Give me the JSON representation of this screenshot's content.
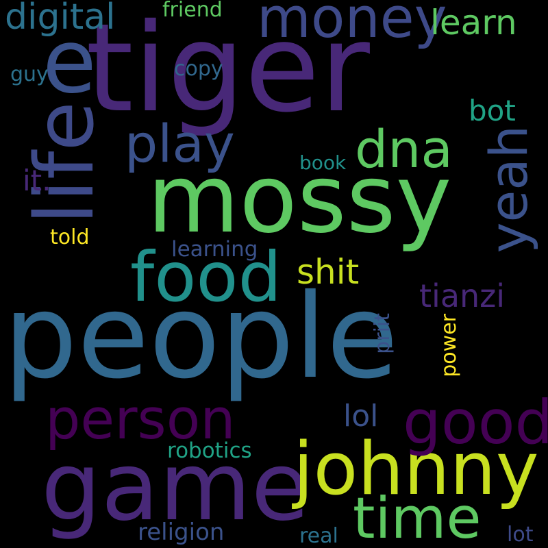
{
  "canvas": {
    "background": "#000000"
  },
  "words": [
    {
      "id": "people",
      "text": "people",
      "color": "#31688e",
      "orientation": "horizontal"
    },
    {
      "id": "tiger",
      "text": "tiger",
      "color": "#482878",
      "orientation": "horizontal"
    },
    {
      "id": "life",
      "text": "life",
      "color": "#3e4a89",
      "orientation": "vertical"
    },
    {
      "id": "e",
      "text": "e",
      "color": "#3b528b",
      "orientation": "horizontal"
    },
    {
      "id": "mossy",
      "text": "mossy",
      "color": "#5ec962",
      "orientation": "horizontal"
    },
    {
      "id": "game",
      "text": "game",
      "color": "#482878",
      "orientation": "horizontal"
    },
    {
      "id": "johnny",
      "text": "johnny",
      "color": "#c8e020",
      "orientation": "horizontal"
    },
    {
      "id": "food",
      "text": "food",
      "color": "#21918c",
      "orientation": "horizontal"
    },
    {
      "id": "money",
      "text": "money",
      "color": "#3e4a89",
      "orientation": "horizontal"
    },
    {
      "id": "person",
      "text": "person",
      "color": "#440154",
      "orientation": "horizontal"
    },
    {
      "id": "good",
      "text": "good",
      "color": "#440154",
      "orientation": "horizontal"
    },
    {
      "id": "time",
      "text": "time",
      "color": "#5ec962",
      "orientation": "horizontal"
    },
    {
      "id": "dna",
      "text": "dna",
      "color": "#5ec962",
      "orientation": "horizontal"
    },
    {
      "id": "play",
      "text": "play",
      "color": "#3b528b",
      "orientation": "horizontal"
    },
    {
      "id": "yeah",
      "text": "yeah",
      "color": "#3b528b",
      "orientation": "vertical"
    },
    {
      "id": "shit",
      "text": "shit",
      "color": "#c8e020",
      "orientation": "horizontal"
    },
    {
      "id": "digital",
      "text": "digital",
      "color": "#2c728e",
      "orientation": "horizontal"
    },
    {
      "id": "learn",
      "text": "learn",
      "color": "#5ec962",
      "orientation": "horizontal"
    },
    {
      "id": "tianzi",
      "text": "tianzi",
      "color": "#482878",
      "orientation": "horizontal"
    },
    {
      "id": "bot",
      "text": "bot",
      "color": "#20a386",
      "orientation": "horizontal"
    },
    {
      "id": "lol",
      "text": "lol",
      "color": "#3b528b",
      "orientation": "horizontal"
    },
    {
      "id": "it",
      "text": "it.",
      "color": "#482878",
      "orientation": "horizontal"
    },
    {
      "id": "religion",
      "text": "religion",
      "color": "#3b528b",
      "orientation": "horizontal"
    },
    {
      "id": "robotics",
      "text": "robotics",
      "color": "#20a386",
      "orientation": "horizontal"
    },
    {
      "id": "learning",
      "text": "learning",
      "color": "#3b528b",
      "orientation": "horizontal"
    },
    {
      "id": "told",
      "text": "told",
      "color": "#fde725",
      "orientation": "horizontal"
    },
    {
      "id": "friend",
      "text": "friend",
      "color": "#5ec962",
      "orientation": "horizontal"
    },
    {
      "id": "copy",
      "text": "copy",
      "color": "#31688e",
      "orientation": "horizontal"
    },
    {
      "id": "guy",
      "text": "guy",
      "color": "#2c728e",
      "orientation": "horizontal"
    },
    {
      "id": "book",
      "text": "book",
      "color": "#21918c",
      "orientation": "horizontal"
    },
    {
      "id": "priit",
      "text": "priit",
      "color": "#3b528b",
      "orientation": "vertical"
    },
    {
      "id": "power",
      "text": "power",
      "color": "#fde725",
      "orientation": "vertical"
    },
    {
      "id": "real",
      "text": "real",
      "color": "#2c728e",
      "orientation": "horizontal"
    },
    {
      "id": "lot",
      "text": "lot",
      "color": "#3e4a89",
      "orientation": "horizontal"
    }
  ]
}
